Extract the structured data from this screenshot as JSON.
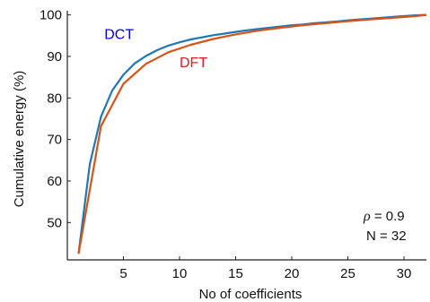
{
  "chart_data": {
    "type": "line",
    "xlabel": "No of coefficients",
    "ylabel": "Cumulative energy (%)",
    "xlim": [
      0,
      32
    ],
    "ylim": [
      41,
      101
    ],
    "xticks": [
      5,
      10,
      15,
      20,
      25,
      30
    ],
    "yticks": [
      50,
      60,
      70,
      80,
      90,
      100
    ],
    "grid": false,
    "series": [
      {
        "name": "DCT",
        "color": "#1f77b4",
        "x": [
          1,
          2,
          3,
          4,
          5,
          6,
          7,
          8,
          9,
          10,
          11,
          12,
          13,
          14,
          15,
          16,
          17,
          18,
          19,
          20,
          21,
          22,
          23,
          24,
          25,
          26,
          27,
          28,
          29,
          30,
          31,
          32
        ],
        "y": [
          42.5,
          64.0,
          75.5,
          81.8,
          85.6,
          88.3,
          90.1,
          91.5,
          92.6,
          93.4,
          94.1,
          94.6,
          95.1,
          95.5,
          95.9,
          96.3,
          96.6,
          96.9,
          97.2,
          97.5,
          97.7,
          98.0,
          98.2,
          98.4,
          98.7,
          98.9,
          99.1,
          99.3,
          99.5,
          99.7,
          99.9,
          100.0
        ]
      },
      {
        "name": "DFT",
        "color": "#d95319",
        "x": [
          1,
          3,
          5,
          7,
          9,
          11,
          13,
          15,
          17,
          19,
          21,
          23,
          25,
          27,
          29,
          31,
          32
        ],
        "y": [
          42.5,
          73.2,
          83.4,
          88.2,
          91.0,
          92.8,
          94.2,
          95.3,
          96.2,
          96.9,
          97.5,
          98.0,
          98.5,
          98.9,
          99.3,
          99.7,
          100.0
        ]
      }
    ],
    "series_labels": [
      {
        "text": "DCT",
        "color": "#0000ee",
        "x": 3.3,
        "y": 94.2
      },
      {
        "text": "DFT",
        "color": "#dd1f1f",
        "x": 10.0,
        "y": 87.4
      }
    ],
    "annotations": {
      "rho_symbol": "ρ",
      "rho_value": " = 0.9",
      "n_text": "N = 32"
    }
  }
}
